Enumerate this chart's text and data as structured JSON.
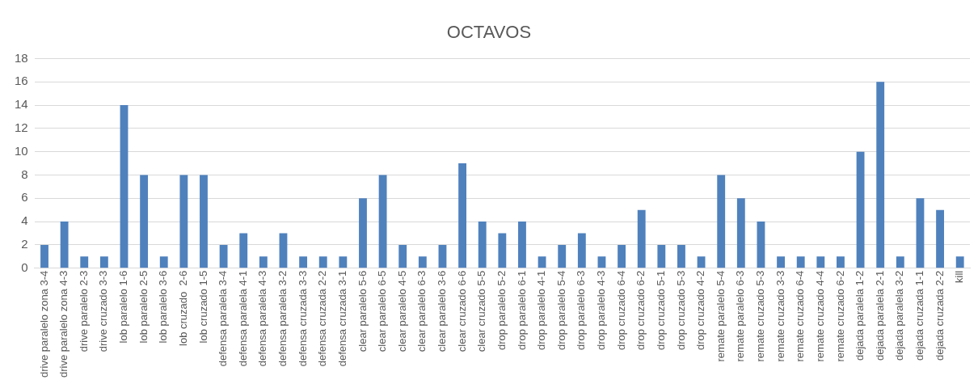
{
  "chart_data": {
    "type": "bar",
    "title": "OCTAVOS",
    "categories": [
      "drive paralelo zona 3-4",
      "drive paralelo zona 4-3",
      "drive paralelo 2-3",
      "drive cruzado 3-3",
      "lob paralelo 1-6",
      "lob paralelo 2-5",
      "lob paralelo 3-6",
      "lob cruzado  2-6",
      "lob cruzado 1-5",
      "defensa paralela 3-4",
      "defensa paralela 4-1",
      "defensa paralela 4-3",
      "defensa paralela 3-2",
      "defensa cruzada 3-3",
      "defensa cruzada 2-2",
      "defensa cruzada 3-1",
      "clear paralelo 5-6",
      "clear paralelo 6-5",
      "clear paralelo 4-5",
      "clear paralelo 6-3",
      "clear paralelo 3-6",
      "clear cruzado 6-6",
      "clear cruzado 5-5",
      "drop paralelo 5-2",
      "drop paralelo 6-1",
      "drop paralelo 4-1",
      "drop paralelo 5-4",
      "drop paralelo 6-3",
      "drop paralelo 4-3",
      "drop cruzado 6-4",
      "drop cruzado 6-2",
      "drop cruzado 5-1",
      "drop cruzado 5-3",
      "drop cruzado 4-2",
      "remate paralelo 5-4",
      "remate paralelo 6-3",
      "remate cruzado 5-3",
      "remate cruzado 3-3",
      "remate cruzado 6-4",
      "remate cruzado 4-4",
      "remate cruzado 6-2",
      "dejada paralela 1-2",
      "dejada paralela 2-1",
      "dejada paralela 3-2",
      "dejada cruzada 1-1",
      "dejada cruzada 2-2",
      "kill"
    ],
    "values": [
      2,
      4,
      1,
      1,
      14,
      8,
      1,
      8,
      8,
      2,
      3,
      1,
      3,
      1,
      1,
      1,
      6,
      8,
      2,
      1,
      2,
      9,
      4,
      3,
      4,
      1,
      2,
      3,
      1,
      2,
      5,
      2,
      2,
      1,
      8,
      6,
      4,
      1,
      1,
      1,
      1,
      10,
      16,
      1,
      6,
      5,
      1
    ],
    "color": "#4f81bd",
    "ylim": [
      0,
      18
    ],
    "yticks": [
      0,
      2,
      4,
      6,
      8,
      10,
      12,
      14,
      16,
      18
    ],
    "grid": "y"
  }
}
